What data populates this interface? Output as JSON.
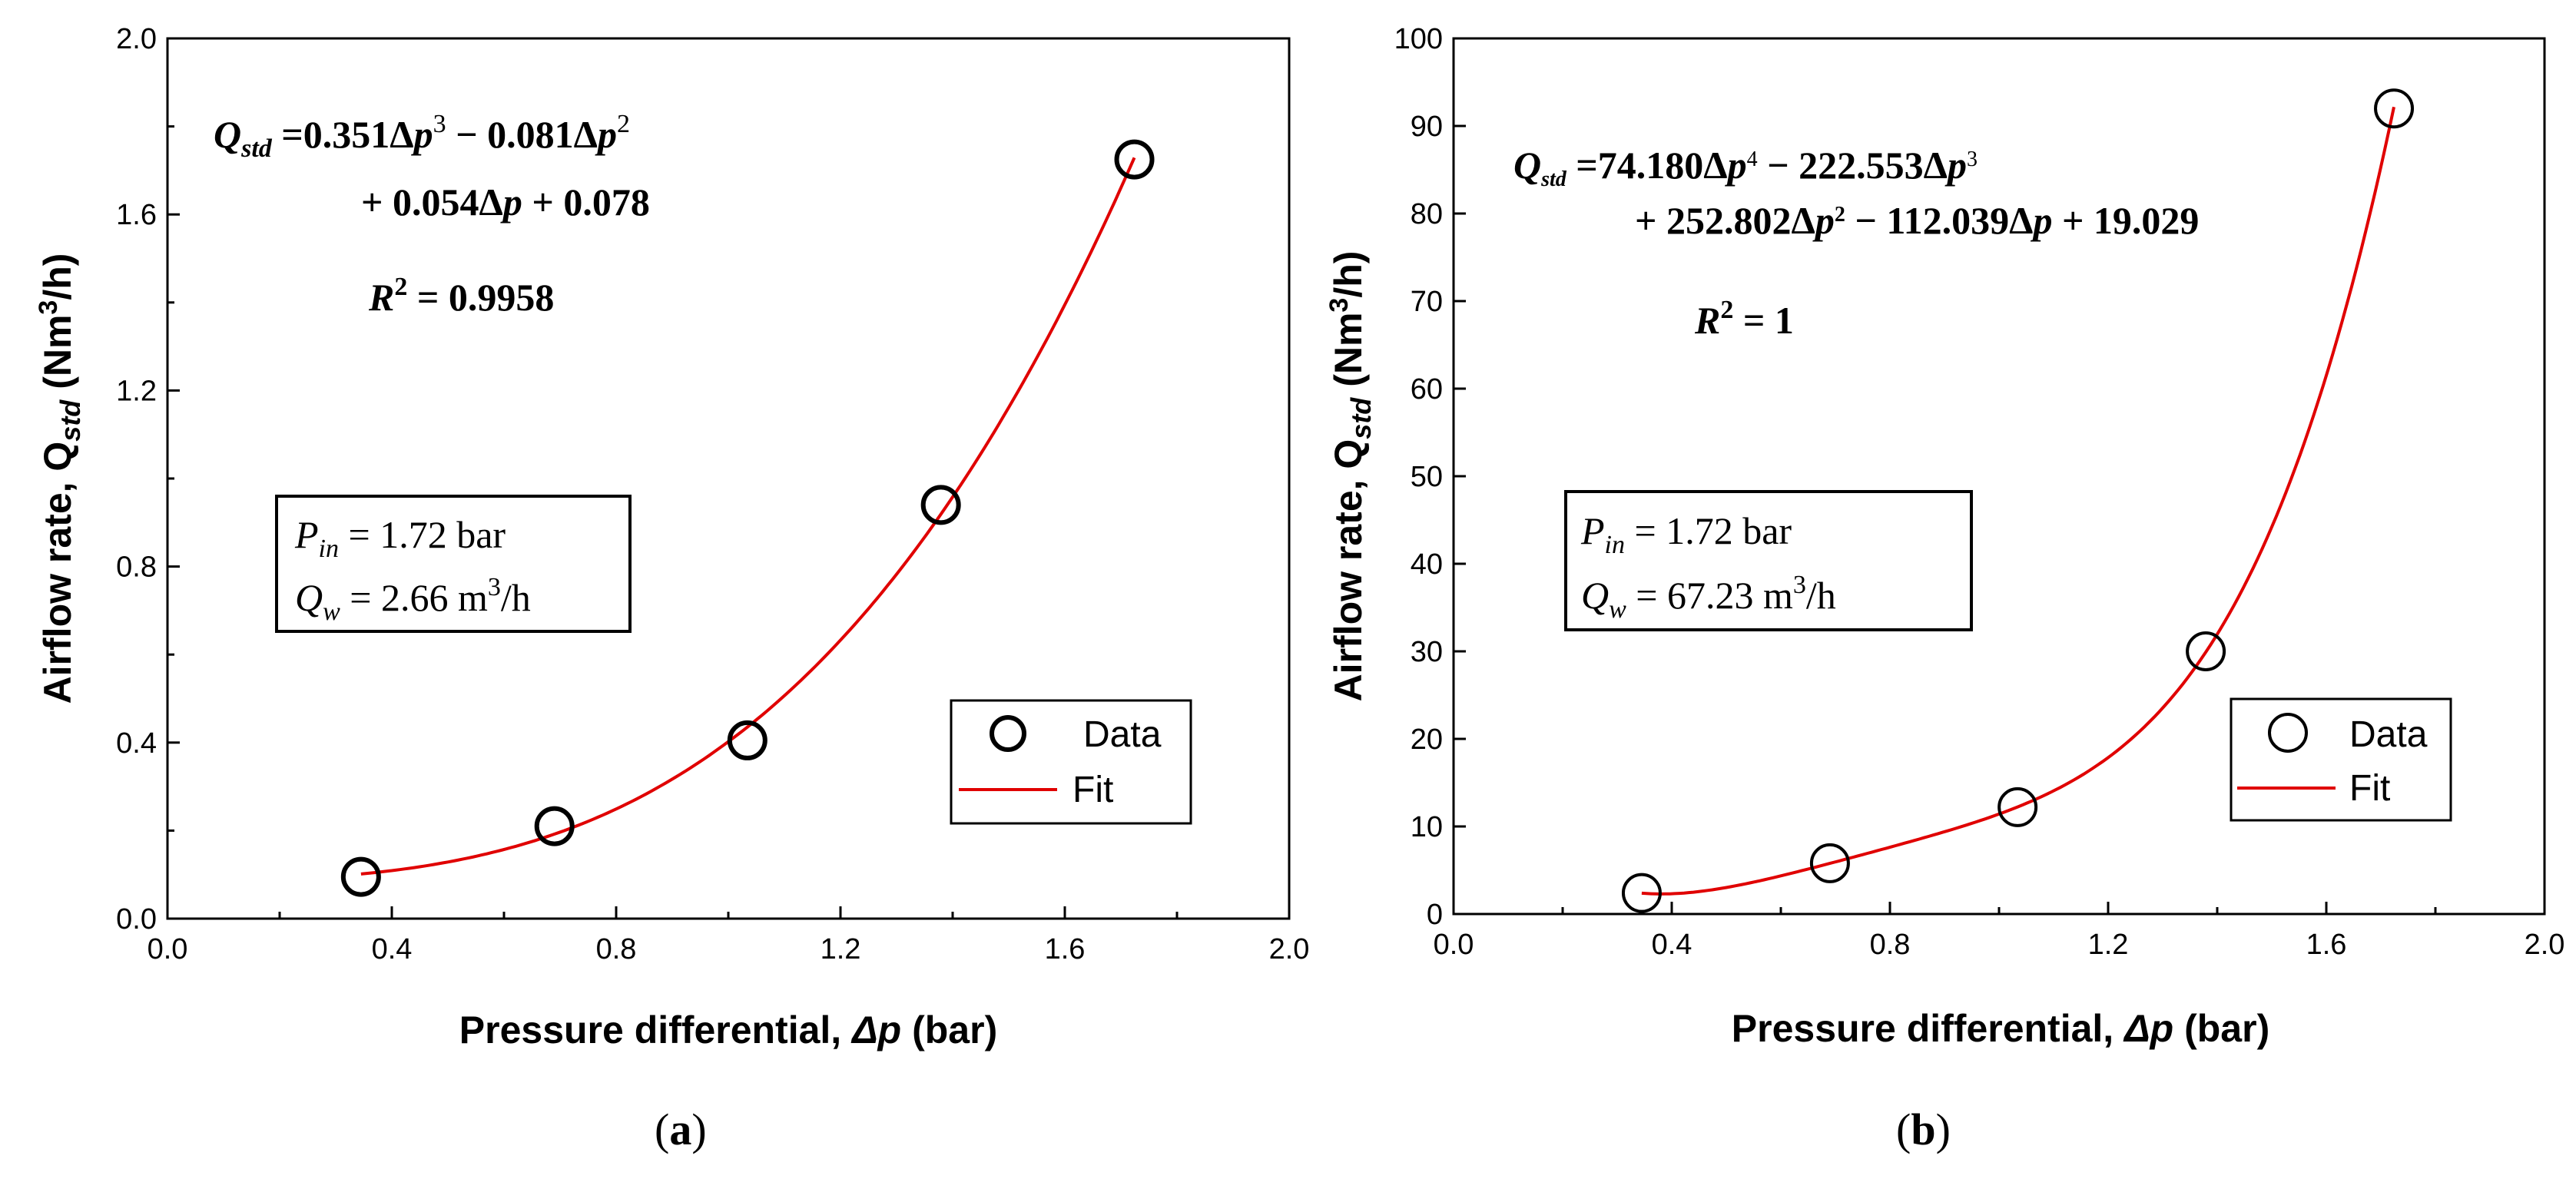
{
  "chart_data": [
    {
      "type": "scatter",
      "panel_label": "(a)",
      "xlabel": "Pressure differential, Δp (bar)",
      "ylabel": "Airflow rate, Q_std (Nm³/h)",
      "xlim": [
        0.0,
        2.0
      ],
      "ylim": [
        0.0,
        2.0
      ],
      "xticks": [
        "0.0",
        "0.4",
        "0.8",
        "1.2",
        "1.6",
        "2.0"
      ],
      "yticks": [
        "0.0",
        "0.4",
        "0.8",
        "1.2",
        "1.6",
        "2.0"
      ],
      "series": [
        {
          "name": "Data",
          "kind": "markers",
          "x": [
            0.345,
            0.69,
            1.034,
            1.379,
            1.724
          ],
          "y": [
            0.095,
            0.21,
            0.405,
            0.94,
            1.725
          ]
        },
        {
          "name": "Fit",
          "kind": "line",
          "coefficients_high_to_low": [
            0.351,
            -0.081,
            0.054,
            0.078
          ],
          "x_range": [
            0.345,
            1.724
          ],
          "color": "#e00000"
        }
      ],
      "legend": {
        "position": "bottom-right",
        "entries": [
          "Data",
          "Fit"
        ]
      },
      "annotations": {
        "eq_line1": "Q_std = 0.351Δp³ − 0.081Δp²",
        "eq_line2": "+ 0.054Δp + 0.078",
        "r2": "R² = 0.9958",
        "box_line1": "P_in = 1.72 bar",
        "box_line2": "Q_w = 2.66 m³/h"
      }
    },
    {
      "type": "scatter",
      "panel_label": "(b)",
      "xlabel": "Pressure differential, Δp (bar)",
      "ylabel": "Airflow rate, Q_std (Nm³/h)",
      "xlim": [
        0.0,
        2.0
      ],
      "ylim": [
        0,
        100
      ],
      "xticks": [
        "0.0",
        "0.4",
        "0.8",
        "1.2",
        "1.6",
        "2.0"
      ],
      "yticks": [
        "0",
        "10",
        "20",
        "30",
        "40",
        "50",
        "60",
        "70",
        "80",
        "90",
        "100"
      ],
      "series": [
        {
          "name": "Data",
          "kind": "markers",
          "x": [
            0.345,
            0.69,
            1.034,
            1.379,
            1.724
          ],
          "y": [
            2.4,
            5.8,
            12.2,
            30.0,
            92.0
          ]
        },
        {
          "name": "Fit",
          "kind": "line",
          "coefficients_high_to_low": [
            74.18,
            -222.553,
            252.802,
            -112.039,
            19.029
          ],
          "x_range": [
            0.345,
            1.724
          ],
          "color": "#e00000"
        }
      ],
      "legend": {
        "position": "bottom-right",
        "entries": [
          "Data",
          "Fit"
        ]
      },
      "annotations": {
        "eq_line1": "Q_std = 74.180Δp⁴ − 222.553Δp³",
        "eq_line2": "+ 252.802Δp² − 112.039Δp + 19.029",
        "r2": "R² = 1",
        "box_line1": "P_in = 1.72 bar",
        "box_line2": "Q_w = 67.23 m³/h"
      }
    }
  ]
}
